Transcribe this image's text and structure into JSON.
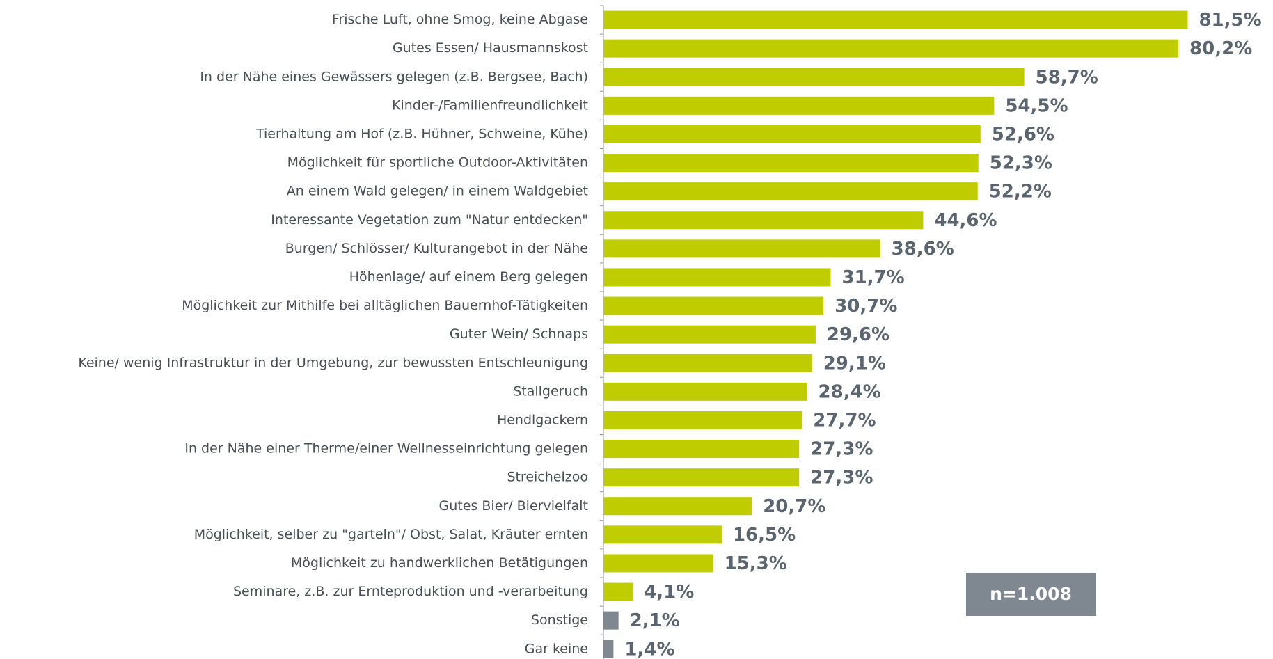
{
  "chart_data": {
    "type": "barh",
    "categories": [
      "Frische Luft, ohne Smog, keine Abgase",
      "Gutes Essen/ Hausmannskost",
      "In der Nähe eines Gewässers gelegen (z.B. Bergsee, Bach)",
      "Kinder-/Familienfreundlichkeit",
      "Tierhaltung am Hof (z.B. Hühner, Schweine, Kühe)",
      "Möglichkeit für sportliche Outdoor-Aktivitäten",
      "An einem Wald gelegen/ in einem Waldgebiet",
      "Interessante Vegetation zum \"Natur entdecken\"",
      "Burgen/ Schlösser/ Kulturangebot in der Nähe",
      "Höhenlage/ auf einem Berg gelegen",
      "Möglichkeit zur Mithilfe bei alltäglichen Bauernhof-Tätigkeiten",
      "Guter Wein/ Schnaps",
      "Keine/ wenig Infrastruktur in der Umgebung, zur bewussten Entschleunigung",
      "Stallgeruch",
      "Hendlgackern",
      "In der Nähe einer Therme/einer Wellnesseinrichtung gelegen",
      "Streichelzoo",
      "Gutes Bier/ Biervielfalt",
      "Möglichkeit, selber zu \"garteln\"/ Obst, Salat, Kräuter ernten",
      "Möglichkeit zu handwerklichen Betätigungen",
      "Seminare, z.B. zur Ernteproduktion und -verarbeitung",
      "Sonstige",
      "Gar keine"
    ],
    "values": [
      81.5,
      80.2,
      58.7,
      54.5,
      52.6,
      52.3,
      52.2,
      44.6,
      38.6,
      31.7,
      30.7,
      29.6,
      29.1,
      28.4,
      27.7,
      27.3,
      27.3,
      20.7,
      16.5,
      15.3,
      4.1,
      2.1,
      1.4
    ],
    "value_labels": [
      "81,5%",
      "80,2%",
      "58,7%",
      "54,5%",
      "52,6%",
      "52,3%",
      "52,2%",
      "44,6%",
      "38,6%",
      "31,7%",
      "30,7%",
      "29,6%",
      "29,1%",
      "28,4%",
      "27,7%",
      "27,3%",
      "27,3%",
      "20,7%",
      "16,5%",
      "15,3%",
      "4,1%",
      "2,1%",
      "1,4%"
    ],
    "colors": [
      "#bfcd00",
      "#bfcd00",
      "#bfcd00",
      "#bfcd00",
      "#bfcd00",
      "#bfcd00",
      "#bfcd00",
      "#bfcd00",
      "#bfcd00",
      "#bfcd00",
      "#bfcd00",
      "#bfcd00",
      "#bfcd00",
      "#bfcd00",
      "#bfcd00",
      "#bfcd00",
      "#bfcd00",
      "#bfcd00",
      "#bfcd00",
      "#bfcd00",
      "#bfcd00",
      "#7f8790",
      "#7f8790"
    ],
    "xlim": [
      0,
      90
    ],
    "annotation": "n=1.008"
  }
}
